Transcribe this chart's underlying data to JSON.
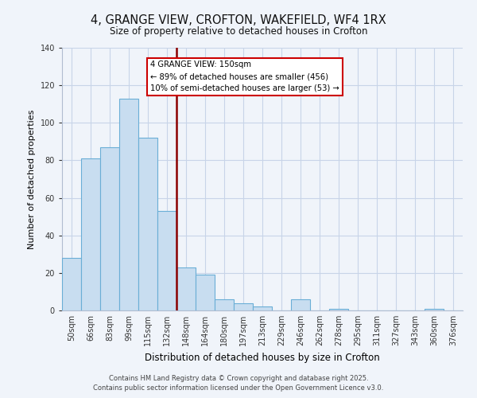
{
  "title": "4, GRANGE VIEW, CROFTON, WAKEFIELD, WF4 1RX",
  "subtitle": "Size of property relative to detached houses in Crofton",
  "xlabel": "Distribution of detached houses by size in Crofton",
  "ylabel": "Number of detached properties",
  "bin_labels": [
    "50sqm",
    "66sqm",
    "83sqm",
    "99sqm",
    "115sqm",
    "132sqm",
    "148sqm",
    "164sqm",
    "180sqm",
    "197sqm",
    "213sqm",
    "229sqm",
    "246sqm",
    "262sqm",
    "278sqm",
    "295sqm",
    "311sqm",
    "327sqm",
    "343sqm",
    "360sqm",
    "376sqm"
  ],
  "bar_values": [
    28,
    81,
    87,
    113,
    92,
    53,
    23,
    19,
    6,
    4,
    2,
    0,
    6,
    0,
    1,
    0,
    0,
    0,
    0,
    1,
    0
  ],
  "bar_color": "#c8ddf0",
  "bar_edge_color": "#6aaed6",
  "vline_x": 6,
  "vline_color": "#8b0000",
  "annotation_title": "4 GRANGE VIEW: 150sqm",
  "annotation_line1": "← 89% of detached houses are smaller (456)",
  "annotation_line2": "10% of semi-detached houses are larger (53) →",
  "annotation_box_color": "white",
  "annotation_box_edge_color": "#cc0000",
  "footer_line1": "Contains HM Land Registry data © Crown copyright and database right 2025.",
  "footer_line2": "Contains public sector information licensed under the Open Government Licence v3.0.",
  "ylim": [
    0,
    140
  ],
  "yticks": [
    0,
    20,
    40,
    60,
    80,
    100,
    120,
    140
  ],
  "background_color": "#f0f4fa",
  "grid_color": "#c8d4e8"
}
